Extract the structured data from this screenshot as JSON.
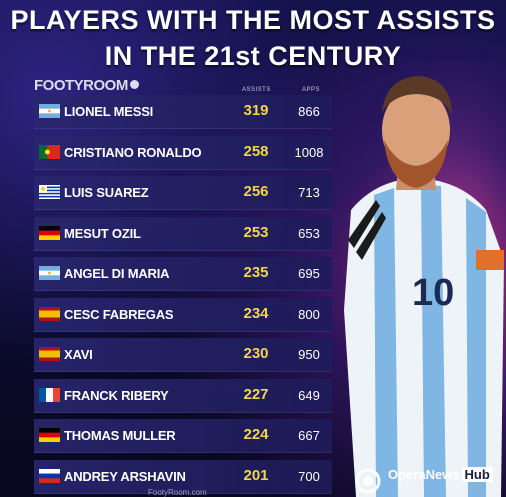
{
  "title_line1": "PLAYERS WITH THE MOST ASSISTS",
  "title_line2": "IN THE 21st CENTURY",
  "brand": "FOOTYROOM",
  "columns": {
    "assists": "ASSISTS",
    "apps": "APPS"
  },
  "players": [
    {
      "name": "LIONEL MESSI",
      "assists": "319",
      "apps": "866",
      "flag": "argentina"
    },
    {
      "name": "CRISTIANO RONALDO",
      "assists": "258",
      "apps": "1008",
      "flag": "portugal"
    },
    {
      "name": "LUIS SUAREZ",
      "assists": "256",
      "apps": "713",
      "flag": "uruguay"
    },
    {
      "name": "MESUT OZIL",
      "assists": "253",
      "apps": "653",
      "flag": "germany"
    },
    {
      "name": "ANGEL DI MARIA",
      "assists": "235",
      "apps": "695",
      "flag": "argentina"
    },
    {
      "name": "CESC FABREGAS",
      "assists": "234",
      "apps": "800",
      "flag": "spain"
    },
    {
      "name": "XAVI",
      "assists": "230",
      "apps": "950",
      "flag": "spain"
    },
    {
      "name": "FRANCK RIBERY",
      "assists": "227",
      "apps": "649",
      "flag": "france"
    },
    {
      "name": "THOMAS MULLER",
      "assists": "224",
      "apps": "667",
      "flag": "germany"
    },
    {
      "name": "ANDREY ARSHAVIN",
      "assists": "201",
      "apps": "700",
      "flag": "russia"
    }
  ],
  "footer": "FootyRoom.com",
  "watermark": {
    "text": "OperaNews",
    "badge": "Hub"
  },
  "colors": {
    "accent": "#f0d64a",
    "background": "#0b0a2a",
    "row": "#28266e"
  }
}
